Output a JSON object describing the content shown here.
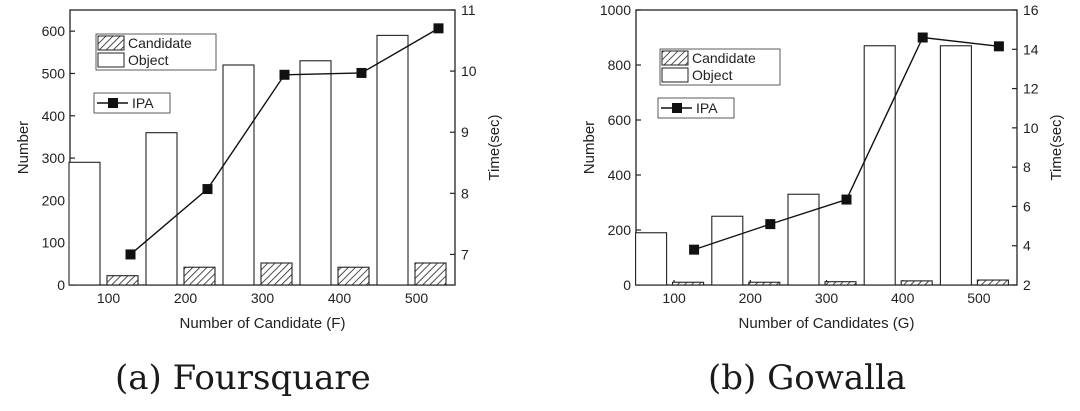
{
  "chart_data": [
    {
      "type": "bar",
      "caption": "(a) Foursquare",
      "categories": [
        "100",
        "200",
        "300",
        "400",
        "500"
      ],
      "xlabel": "Number of Candidate (F)",
      "ylabel": "Number",
      "y2label": "Time(sec)",
      "ylim": [
        0,
        650
      ],
      "y2lim": [
        6.5,
        11
      ],
      "yticks": [
        "0",
        "100",
        "200",
        "300",
        "400",
        "500",
        "600"
      ],
      "y2ticks": [
        "7",
        "8",
        "9",
        "10",
        "11"
      ],
      "series": [
        {
          "name": "Candidate",
          "type": "bar",
          "pattern": "hatched",
          "values": [
            22,
            42,
            52,
            42,
            52
          ]
        },
        {
          "name": "Object",
          "type": "bar",
          "pattern": "hollow",
          "values": [
            290,
            360,
            520,
            530,
            590
          ]
        },
        {
          "name": "IPA",
          "type": "line",
          "axis": "right",
          "values": [
            7.0,
            8.07,
            9.94,
            9.97,
            10.7
          ]
        }
      ],
      "legend": "top-left"
    },
    {
      "type": "bar",
      "caption": "(b) Gowalla",
      "categories": [
        "100",
        "200",
        "300",
        "400",
        "500"
      ],
      "xlabel": "Number of  Candidates (G)",
      "ylabel": "Number",
      "y2label": "Time(sec)",
      "ylim": [
        0,
        1000
      ],
      "y2lim": [
        2,
        16
      ],
      "yticks": [
        "0",
        "200",
        "400",
        "600",
        "800",
        "1000"
      ],
      "y2ticks": [
        "2",
        "4",
        "6",
        "8",
        "10",
        "12",
        "14",
        "16"
      ],
      "series": [
        {
          "name": "Candidate",
          "type": "bar",
          "pattern": "hatched",
          "values": [
            10,
            10,
            12,
            15,
            18
          ]
        },
        {
          "name": "Object",
          "type": "bar",
          "pattern": "hollow",
          "values": [
            190,
            250,
            330,
            870,
            870
          ]
        },
        {
          "name": "IPA",
          "type": "line",
          "axis": "right",
          "values": [
            3.8,
            5.1,
            6.35,
            14.6,
            14.15
          ]
        }
      ],
      "legend": "top-left"
    }
  ]
}
